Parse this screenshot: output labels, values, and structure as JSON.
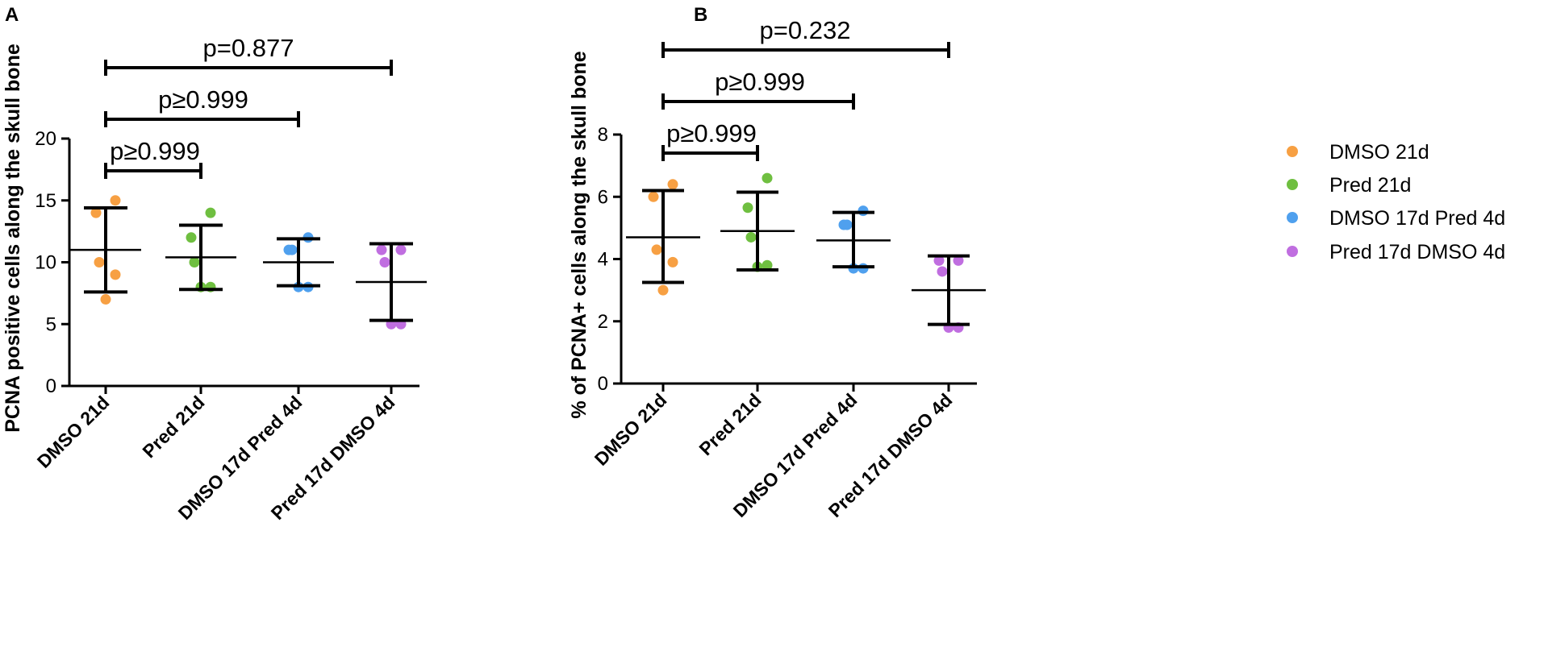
{
  "legend": {
    "items": [
      {
        "label": "DMSO 21d",
        "color": "#f7a043"
      },
      {
        "label": "Pred 21d",
        "color": "#6fbf40"
      },
      {
        "label": "DMSO 17d Pred 4d",
        "color": "#4fa0ee"
      },
      {
        "label": "Pred 17d DMSO 4d",
        "color": "#c06ee0"
      }
    ]
  },
  "chart_data": [
    {
      "panel": "A",
      "type": "scatter",
      "categories": [
        "DMSO 21d",
        "Pred 21d",
        "DMSO 17d Pred 4d",
        "Pred 17d DMSO 4d"
      ],
      "ylabel": "PCNA positive cells along the skull bone",
      "ylim": [
        0,
        20
      ],
      "yticks": [
        "0",
        "5",
        "10",
        "15",
        "20"
      ],
      "yticks_values": [
        0,
        5,
        10,
        15,
        20
      ],
      "series": [
        {
          "name": "DMSO 21d",
          "points": [
            15,
            14,
            10,
            9,
            7
          ],
          "mean": 11.0,
          "sd_low": 7.6,
          "sd_high": 14.4
        },
        {
          "name": "Pred 21d",
          "points": [
            14,
            12,
            10,
            8,
            8
          ],
          "mean": 10.4,
          "sd_low": 7.8,
          "sd_high": 13.0
        },
        {
          "name": "DMSO 17d Pred 4d",
          "points": [
            12,
            11,
            11,
            8,
            8
          ],
          "mean": 10.0,
          "sd_low": 8.1,
          "sd_high": 11.9
        },
        {
          "name": "Pred 17d DMSO 4d",
          "points": [
            11,
            11,
            10,
            5,
            5
          ],
          "mean": 8.4,
          "sd_low": 5.3,
          "sd_high": 11.5
        }
      ],
      "comparisons": [
        {
          "from": 0,
          "to": 1,
          "label": "p≥0.999",
          "level": 1
        },
        {
          "from": 0,
          "to": 2,
          "label": "p≥0.999",
          "level": 2
        },
        {
          "from": 0,
          "to": 3,
          "label": "p=0.877",
          "level": 3
        }
      ]
    },
    {
      "panel": "B",
      "type": "scatter",
      "categories": [
        "DMSO 21d",
        "Pred 21d",
        "DMSO 17d Pred 4d",
        "Pred 17d DMSO 4d"
      ],
      "ylabel": "% of PCNA+ cells along the skull bone",
      "ylim": [
        0,
        8
      ],
      "yticks": [
        "0",
        "2",
        "4",
        "6",
        "8"
      ],
      "yticks_values": [
        0,
        2,
        4,
        6,
        8
      ],
      "series": [
        {
          "name": "DMSO 21d",
          "points": [
            6.4,
            6.0,
            4.3,
            3.9,
            3.0
          ],
          "mean": 4.7,
          "sd_low": 3.25,
          "sd_high": 6.2
        },
        {
          "name": "Pred 21d",
          "points": [
            6.6,
            5.65,
            4.7,
            3.8,
            3.75
          ],
          "mean": 4.9,
          "sd_low": 3.65,
          "sd_high": 6.15
        },
        {
          "name": "DMSO 17d Pred 4d",
          "points": [
            5.55,
            5.1,
            5.1,
            3.7,
            3.7
          ],
          "mean": 4.6,
          "sd_low": 3.75,
          "sd_high": 5.5
        },
        {
          "name": "Pred 17d DMSO 4d",
          "points": [
            3.95,
            3.95,
            3.6,
            1.8,
            1.8
          ],
          "mean": 3.0,
          "sd_low": 1.9,
          "sd_high": 4.1
        }
      ],
      "comparisons": [
        {
          "from": 0,
          "to": 1,
          "label": "p≥0.999",
          "level": 1
        },
        {
          "from": 0,
          "to": 2,
          "label": "p≥0.999",
          "level": 2
        },
        {
          "from": 0,
          "to": 3,
          "label": "p=0.232",
          "level": 3
        }
      ]
    }
  ]
}
